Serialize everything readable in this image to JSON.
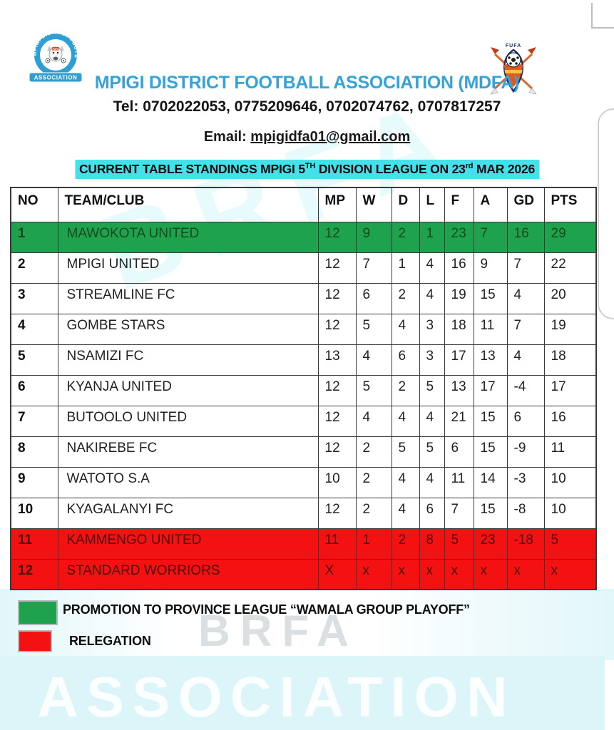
{
  "header": {
    "title": "MPIGI DISTRICT FOOTBALL ASSOCIATION (MDFA)",
    "tel": "Tel: 0702022053, 0775209646, 0702074762, 0707817257",
    "email_label": "Email:",
    "email": "mpigidfa01@gmail.com",
    "mdfa_logo": {
      "arc_text": "MPIGI DISTRICT FOOTBALL",
      "banner": "ASSOCIATION",
      "center_label": "FUFA"
    },
    "fufa_logo": {
      "label": "FUFA"
    }
  },
  "banner": {
    "part1": "CURRENT TABLE STANDINGS MPIGI 5",
    "sup1": "TH",
    "part2": " DIVISION LEAGUE ON 23",
    "sup2": "rd",
    "part3": " MAR 2026"
  },
  "table": {
    "headers": [
      "NO",
      "TEAM/CLUB",
      "MP",
      "W",
      "D",
      "L",
      "F",
      "A",
      "GD",
      "PTS"
    ],
    "rows": [
      {
        "cells": [
          "1",
          "MAWOKOTA UNITED",
          "12",
          "9",
          "2",
          "1",
          "23",
          "7",
          "16",
          "29"
        ],
        "highlight": "promotion"
      },
      {
        "cells": [
          "2",
          "MPIGI UNITED",
          "12",
          "7",
          "1",
          "4",
          "16",
          "9",
          "7",
          "22"
        ],
        "highlight": null
      },
      {
        "cells": [
          "3",
          "STREAMLINE FC",
          "12",
          "6",
          "2",
          "4",
          "19",
          "15",
          "4",
          "20"
        ],
        "highlight": null
      },
      {
        "cells": [
          "4",
          "GOMBE STARS",
          "12",
          "5",
          "4",
          "3",
          "18",
          "11",
          "7",
          "19"
        ],
        "highlight": null
      },
      {
        "cells": [
          "5",
          "NSAMIZI FC",
          "13",
          "4",
          "6",
          "3",
          "17",
          "13",
          "4",
          "18"
        ],
        "highlight": null
      },
      {
        "cells": [
          "6",
          "KYANJA UNITED",
          "12",
          "5",
          "2",
          "5",
          "13",
          "17",
          "-4",
          "17"
        ],
        "highlight": null
      },
      {
        "cells": [
          "7",
          "BUTOOLO UNITED",
          "12",
          "4",
          "4",
          "4",
          "21",
          "15",
          "6",
          "16"
        ],
        "highlight": null
      },
      {
        "cells": [
          "8",
          "NAKIREBE FC",
          "12",
          "2",
          "5",
          "5",
          "6",
          "15",
          "-9",
          "11"
        ],
        "highlight": null
      },
      {
        "cells": [
          "9",
          "WATOTO S.A",
          "10",
          "2",
          "4",
          "4",
          "11",
          "14",
          "-3",
          "10"
        ],
        "highlight": null
      },
      {
        "cells": [
          "10",
          "KYAGALANYI FC",
          "12",
          "2",
          "4",
          "6",
          "7",
          "15",
          "-8",
          "10"
        ],
        "highlight": null
      },
      {
        "cells": [
          "11",
          "KAMMENGO UNITED",
          "11",
          "1",
          "2",
          "8",
          "5",
          "23",
          "-18",
          "5"
        ],
        "highlight": "relegation"
      },
      {
        "cells": [
          "12",
          "STANDARD WORRIORS",
          "X",
          "x",
          "x",
          "x",
          "x",
          "x",
          "x",
          "x"
        ],
        "highlight": "relegation"
      }
    ]
  },
  "legend": [
    {
      "color": "#1fa24e",
      "label": "PROMOTION TO PROVINCE LEAGUE “WAMALA GROUP PLAYOFF”"
    },
    {
      "color": "#f41111",
      "label": "RELEGATION"
    }
  ],
  "watermarks": {
    "diagonal": "BRFA",
    "brfa": "BRFA",
    "association": "ASSOCIATION"
  },
  "colors": {
    "title_blue": "#35a3d9",
    "banner_cyan": "#45e0ea",
    "promotion_green": "#1fa24e",
    "relegation_red": "#f41111"
  }
}
